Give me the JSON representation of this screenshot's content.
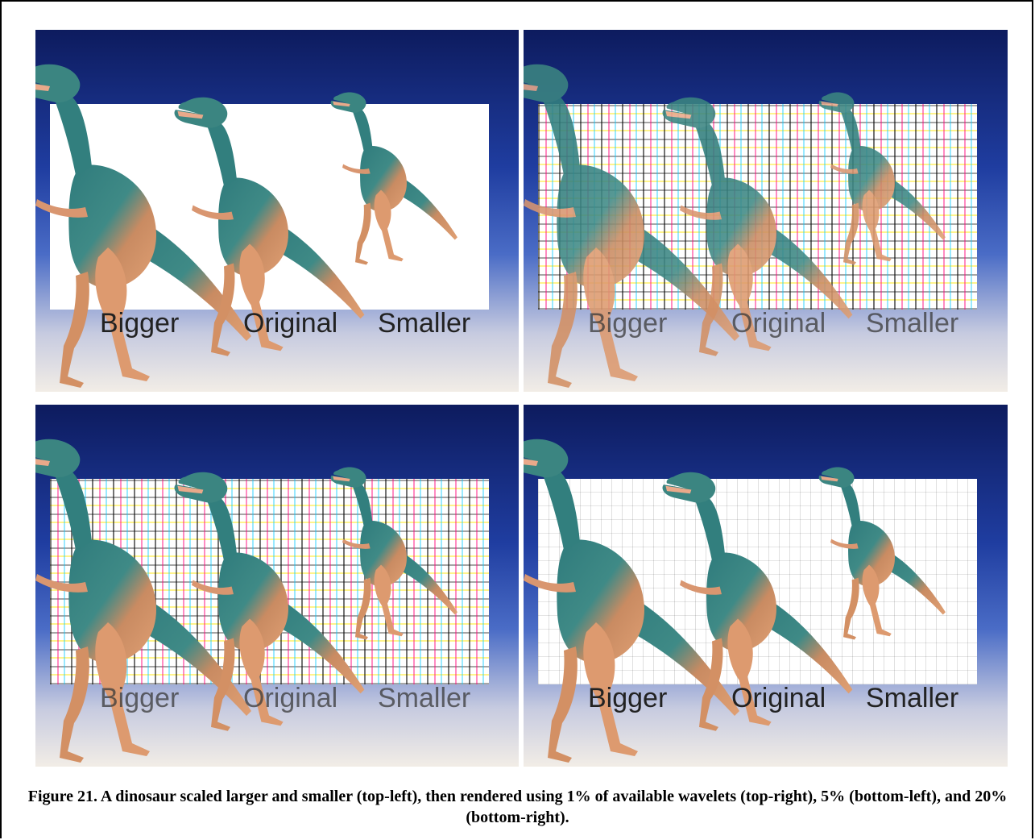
{
  "figure": {
    "caption": "Figure 21. A dinosaur scaled larger and smaller (top-left), then rendered using 1% of available wavelets (top-right), 5% (bottom-left), and 20% (bottom-right).",
    "panels": [
      {
        "label_bigger": "Bigger",
        "label_original": "Original",
        "label_smaller": "Smaller"
      },
      {
        "label_bigger": "Bigger",
        "label_original": "Original",
        "label_smaller": "Smaller"
      },
      {
        "label_bigger": "Bigger",
        "label_original": "Original",
        "label_smaller": "Smaller"
      },
      {
        "label_bigger": "Bigger",
        "label_original": "Original",
        "label_smaller": "Smaller"
      }
    ]
  },
  "colors": {
    "sky_top": "#0d1b5e",
    "sky_bottom": "#f2ede6",
    "dino_body": "#d9936a",
    "dino_back": "#2f7b7c"
  }
}
